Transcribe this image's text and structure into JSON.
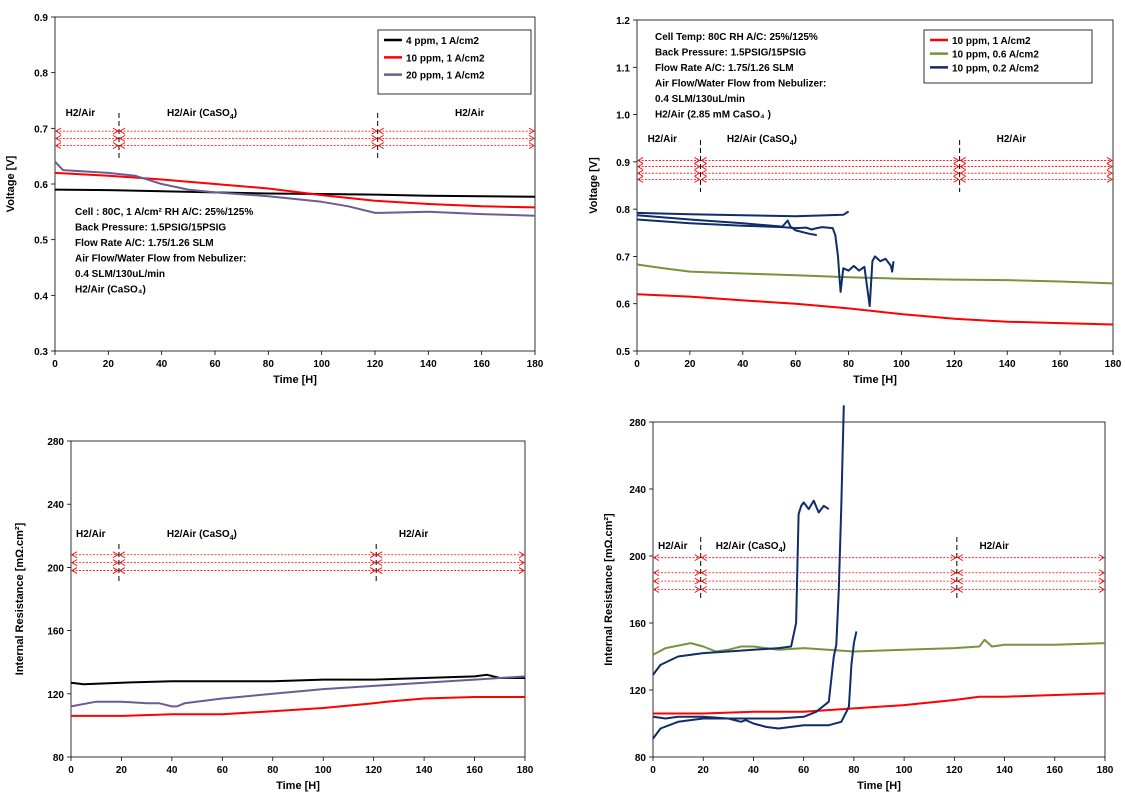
{
  "colors": {
    "black": "#000000",
    "red": "#ff0000",
    "purple": "#6f5b93",
    "green": "#77933c",
    "navy": "#0f2c6b",
    "arrow_red": "#ff0000"
  },
  "chart_data": [
    {
      "id": "tl",
      "type": "line",
      "xlabel": "Time [H]",
      "ylabel": "Voltage [V]",
      "xlim": [
        0,
        180
      ],
      "ylim": [
        0.3,
        0.9
      ],
      "xticks": [
        "0",
        "20",
        "40",
        "60",
        "80",
        "100",
        "120",
        "140",
        "160",
        "180"
      ],
      "yticks": [
        "0.3",
        "0.4",
        "0.5",
        "0.6",
        "0.7",
        "0.8",
        "0.9"
      ],
      "legend": {
        "placement": "top-right",
        "entries": [
          "4 ppm, 1 A/cm2",
          "10 ppm, 1 A/cm2",
          "20 ppm, 1 A/cm2"
        ]
      },
      "series": [
        {
          "name": "4 ppm, 1 A/cm2",
          "color": "black",
          "x": [
            0,
            20,
            40,
            60,
            80,
            100,
            120,
            140,
            160,
            180
          ],
          "y": [
            0.59,
            0.589,
            0.587,
            0.585,
            0.583,
            0.582,
            0.581,
            0.579,
            0.578,
            0.577
          ]
        },
        {
          "name": "10 ppm, 1 A/cm2",
          "color": "red",
          "x": [
            0,
            20,
            40,
            60,
            80,
            100,
            120,
            140,
            160,
            180
          ],
          "y": [
            0.62,
            0.615,
            0.608,
            0.6,
            0.592,
            0.58,
            0.57,
            0.564,
            0.56,
            0.558
          ]
        },
        {
          "name": "20 ppm, 1 A/cm2",
          "color": "purple",
          "x": [
            0,
            3,
            20,
            30,
            40,
            50,
            60,
            80,
            100,
            110,
            120,
            122,
            140,
            160,
            180
          ],
          "y": [
            0.64,
            0.625,
            0.62,
            0.615,
            0.6,
            0.59,
            0.585,
            0.578,
            0.568,
            0.56,
            0.548,
            0.548,
            0.55,
            0.546,
            0.543
          ]
        }
      ],
      "phases": [
        {
          "label": "H2/Air",
          "x": 4
        },
        {
          "label": "H2/Air (CaSO",
          "sub": "4",
          "tail": ")",
          "x": 42
        },
        {
          "label": "H2/Air",
          "x": 150
        }
      ],
      "phase_dividers": [
        24,
        121
      ],
      "arrow_rows": [
        0.695,
        0.682,
        0.669
      ],
      "arrow_segments": [
        [
          0,
          24
        ],
        [
          24,
          121
        ],
        [
          121,
          180
        ]
      ],
      "annotation_lines": [
        "Cell : 80C, 1 A/cm² RH A/C: 25%/125%",
        "Back Pressure: 1.5PSIG/15PSIG",
        "Flow Rate A/C: 1.75/1.26 SLM",
        "Air Flow/Water Flow from Nebulizer:",
        "0.4 SLM/130uL/min",
        "H2/Air (CaSO₄)"
      ]
    },
    {
      "id": "tr",
      "type": "line",
      "xlabel": "Time [H]",
      "ylabel": "Voltage [V]",
      "xlim": [
        0,
        180
      ],
      "ylim": [
        0.5,
        1.2
      ],
      "xticks": [
        "0",
        "20",
        "40",
        "60",
        "80",
        "100",
        "120",
        "140",
        "160",
        "180"
      ],
      "yticks": [
        "0.5",
        "0.6",
        "0.7",
        "0.8",
        "0.9",
        "1.0",
        "1.1",
        "1.2"
      ],
      "legend": {
        "placement": "top-right",
        "entries": [
          "10 ppm, 1 A/cm2",
          "10 ppm, 0.6 A/cm2",
          "10 ppm, 0.2 A/cm2"
        ]
      },
      "series": [
        {
          "name": "10 ppm, 1 A/cm2",
          "color": "red",
          "x": [
            0,
            20,
            40,
            60,
            80,
            100,
            120,
            140,
            160,
            180
          ],
          "y": [
            0.62,
            0.615,
            0.607,
            0.6,
            0.59,
            0.578,
            0.568,
            0.562,
            0.559,
            0.556
          ]
        },
        {
          "name": "10 ppm, 0.6 A/cm2",
          "color": "green",
          "x": [
            0,
            10,
            20,
            40,
            60,
            80,
            100,
            120,
            140,
            160,
            180
          ],
          "y": [
            0.683,
            0.675,
            0.668,
            0.664,
            0.66,
            0.656,
            0.653,
            0.651,
            0.65,
            0.647,
            0.643
          ]
        },
        {
          "name": "10 ppm, 0.2 A/cm2",
          "color": "navy",
          "x": [
            0,
            20,
            40,
            60,
            78,
            80
          ],
          "y": [
            0.792,
            0.789,
            0.787,
            0.785,
            0.788,
            0.795
          ]
        },
        {
          "name": "",
          "color": "navy",
          "x": [
            0,
            20,
            40,
            55,
            57,
            58,
            60,
            65,
            68
          ],
          "y": [
            0.787,
            0.778,
            0.77,
            0.763,
            0.776,
            0.763,
            0.755,
            0.748,
            0.745
          ]
        },
        {
          "name": "",
          "color": "navy",
          "x": [
            0,
            20,
            40,
            55,
            60,
            64,
            66,
            68,
            70,
            74,
            75,
            76,
            76.5,
            77,
            78,
            80,
            82,
            84,
            86,
            88,
            89,
            90,
            92,
            94,
            96,
            96.5,
            97
          ],
          "y": [
            0.778,
            0.77,
            0.765,
            0.762,
            0.76,
            0.761,
            0.757,
            0.76,
            0.762,
            0.76,
            0.745,
            0.7,
            0.66,
            0.625,
            0.675,
            0.67,
            0.68,
            0.67,
            0.678,
            0.595,
            0.69,
            0.7,
            0.69,
            0.695,
            0.68,
            0.668,
            0.69
          ]
        }
      ],
      "phases": [
        {
          "label": "H2/Air",
          "x": 4
        },
        {
          "label": "H2/Air (CaSO",
          "sub": "4",
          "tail": ")",
          "x": 34
        },
        {
          "label": "H2/Air",
          "x": 136
        }
      ],
      "phase_dividers": [
        24,
        122
      ],
      "arrow_rows": [
        0.903,
        0.89,
        0.876,
        0.863
      ],
      "arrow_segments": [
        [
          0,
          24
        ],
        [
          24,
          122
        ],
        [
          122,
          180
        ]
      ],
      "annotation_lines": [
        "Cell Temp: 80C   RH A/C: 25%/125%",
        "Back Pressure: 1.5PSIG/15PSIG",
        "Flow Rate A/C: 1.75/1.26 SLM",
        "Air Flow/Water Flow from Nebulizer:",
        "0.4 SLM/130uL/min",
        "H2/Air (2.85 mM CaSO₄ )"
      ]
    },
    {
      "id": "bl",
      "type": "line",
      "xlabel": "Time [H]",
      "ylabel": "Internal Resistance [mΩ.cm²]",
      "xlim": [
        0,
        180
      ],
      "ylim": [
        80,
        280
      ],
      "xticks": [
        "0",
        "20",
        "40",
        "60",
        "80",
        "100",
        "120",
        "140",
        "160",
        "180"
      ],
      "yticks": [
        "80",
        "120",
        "160",
        "200",
        "240",
        "280"
      ],
      "series": [
        {
          "name": "",
          "color": "black",
          "x": [
            0,
            5,
            20,
            40,
            60,
            80,
            100,
            120,
            140,
            160,
            165,
            170,
            180
          ],
          "y": [
            127,
            126,
            127,
            128,
            128,
            128,
            129,
            129,
            130,
            131,
            132,
            130,
            130
          ]
        },
        {
          "name": "",
          "color": "red",
          "x": [
            0,
            20,
            40,
            60,
            80,
            100,
            120,
            125,
            140,
            160,
            180
          ],
          "y": [
            106,
            106,
            107,
            107,
            109,
            111,
            114,
            115,
            117,
            118,
            118
          ]
        },
        {
          "name": "",
          "color": "purple",
          "x": [
            0,
            10,
            20,
            30,
            35,
            40,
            42,
            45,
            60,
            80,
            100,
            120,
            140,
            160,
            170,
            180
          ],
          "y": [
            112,
            115,
            115,
            114,
            114,
            112,
            112,
            114,
            117,
            120,
            123,
            125,
            127,
            129,
            130,
            131
          ]
        }
      ],
      "phases": [
        {
          "label": "H2/Air",
          "x": 2
        },
        {
          "label": "H2/Air (CaSO",
          "sub": "4",
          "tail": ")",
          "x": 38
        },
        {
          "label": "H2/Air",
          "x": 130
        }
      ],
      "phase_dividers": [
        19,
        121
      ],
      "arrow_rows": [
        208,
        203,
        198
      ],
      "arrow_segments": [
        [
          0,
          19
        ],
        [
          19,
          121
        ],
        [
          121,
          180
        ]
      ]
    },
    {
      "id": "br",
      "type": "line",
      "xlabel": "Time [H]",
      "ylabel": "Internal Resistance [mΩ.cm²]",
      "xlim": [
        0,
        180
      ],
      "ylim": [
        80,
        280
      ],
      "xticks": [
        "0",
        "20",
        "40",
        "60",
        "80",
        "100",
        "120",
        "140",
        "160",
        "180"
      ],
      "yticks": [
        "80",
        "120",
        "160",
        "200",
        "240",
        "280"
      ],
      "series": [
        {
          "name": "",
          "color": "green",
          "x": [
            0,
            5,
            15,
            20,
            25,
            30,
            35,
            40,
            50,
            60,
            80,
            100,
            120,
            130,
            132,
            135,
            140,
            160,
            180
          ],
          "y": [
            141,
            145,
            148,
            146,
            143,
            144,
            146,
            146,
            144,
            145,
            143,
            144,
            145,
            146,
            150,
            146,
            147,
            147,
            148
          ]
        },
        {
          "name": "",
          "color": "red",
          "x": [
            0,
            20,
            40,
            60,
            80,
            100,
            120,
            130,
            140,
            160,
            180
          ],
          "y": [
            106,
            106,
            107,
            107,
            109,
            111,
            114,
            116,
            116,
            117,
            118
          ]
        },
        {
          "name": "",
          "color": "navy",
          "x": [
            0,
            3,
            10,
            20,
            30,
            40,
            50,
            55,
            57,
            58,
            59,
            60,
            62,
            64,
            66,
            68,
            70
          ],
          "y": [
            129,
            135,
            140,
            142,
            143,
            144,
            145,
            146,
            160,
            225,
            230,
            232,
            228,
            233,
            226,
            230,
            228
          ]
        },
        {
          "name": "",
          "color": "navy",
          "x": [
            0,
            5,
            10,
            20,
            30,
            40,
            50,
            60,
            65,
            70,
            72,
            73,
            74,
            75,
            76
          ],
          "y": [
            104,
            103,
            104,
            104,
            103,
            103,
            103,
            104,
            107,
            113,
            140,
            147,
            180,
            230,
            290
          ]
        },
        {
          "name": "",
          "color": "navy",
          "x": [
            0,
            3,
            10,
            20,
            30,
            35,
            37,
            40,
            45,
            50,
            55,
            60,
            70,
            75,
            78,
            79,
            80,
            81
          ],
          "y": [
            91,
            97,
            101,
            103,
            103,
            101,
            102,
            100,
            98,
            97,
            98,
            99,
            99,
            101,
            110,
            135,
            148,
            155
          ]
        }
      ],
      "phases": [
        {
          "label": "H2/Air",
          "x": 2
        },
        {
          "label": "H2/Air (CaSO",
          "sub": "4",
          "tail": ")",
          "x": 25
        },
        {
          "label": "H2/Air",
          "x": 130
        }
      ],
      "phase_dividers": [
        19,
        121
      ],
      "arrow_rows": [
        199,
        190,
        185,
        180
      ],
      "arrow_segments": [
        [
          0,
          19
        ],
        [
          19,
          121
        ],
        [
          121,
          180
        ]
      ]
    }
  ]
}
